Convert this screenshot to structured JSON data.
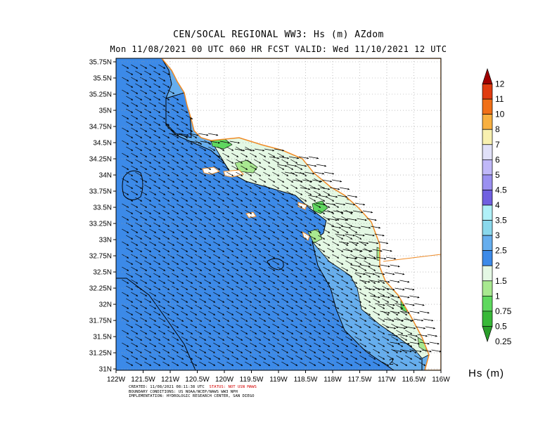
{
  "header": {
    "title_line1": "CEN/SOCAL REGIONAL WW3: Hs (m) AZdom",
    "title_line2": "Mon 11/08/2021 00 UTC 060 HR FCST    VALID: Wed 11/10/2021 12 UTC"
  },
  "map": {
    "lat_labels": [
      "35.75N",
      "35.5N",
      "35.25N",
      "35N",
      "34.75N",
      "34.5N",
      "34.25N",
      "34N",
      "33.75N",
      "33.5N",
      "33.25N",
      "33N",
      "32.75N",
      "32.5N",
      "32.25N",
      "32N",
      "31.75N",
      "31.5N",
      "31.25N",
      "31N"
    ],
    "lon_labels": [
      "122W",
      "121.5W",
      "121W",
      "120.5W",
      "120W",
      "119.5W",
      "119W",
      "118.5W",
      "118W",
      "117.5W",
      "117W",
      "116.5W",
      "116W"
    ],
    "contour_label": "2",
    "colors": {
      "land": "#ffffff",
      "coast": "#f08a24",
      "hs_1_1p5": "#e4f8e4",
      "hs_1p5_2": "#3c8ae8",
      "hs_2_2p5": "#66aeee",
      "hs_0p75_1": "#a8e890",
      "hs_0p5_0p75": "#5ed85e",
      "grid": "#9a9a9a"
    },
    "arrow_direction": "from northwest"
  },
  "colorbar": {
    "labels": [
      "12",
      "11",
      "10",
      "8",
      "7",
      "6",
      "5",
      "4.5",
      "4",
      "3.5",
      "3",
      "2.5",
      "2",
      "1.5",
      "1",
      "0.75",
      "0.5",
      "0.25"
    ],
    "colors": [
      "#a00000",
      "#e03c10",
      "#f07018",
      "#f8b040",
      "#f8f0b0",
      "#e0e0f8",
      "#c0b8f8",
      "#9a90f0",
      "#7060e0",
      "#b0f0f8",
      "#8ad8ec",
      "#66aeee",
      "#3c8ae8",
      "#e4f8e4",
      "#a8e890",
      "#5ed85e",
      "#38b838",
      "#2a9e2a"
    ],
    "unit": "Hs (m)"
  },
  "credits": {
    "line1_prefix": "CREATED: 11/08/2021 08:11:38 UTC",
    "line1_status": "STATUS: NOT USN MAWS",
    "line2": "BOUNDARY CONDITIONS: US NOAA/NCEP/NAWS WW3 NPH",
    "line3": "IMPLEMENTATION: HYDROLOGIC RESEARCH CENTER, SAN DIEGO"
  }
}
